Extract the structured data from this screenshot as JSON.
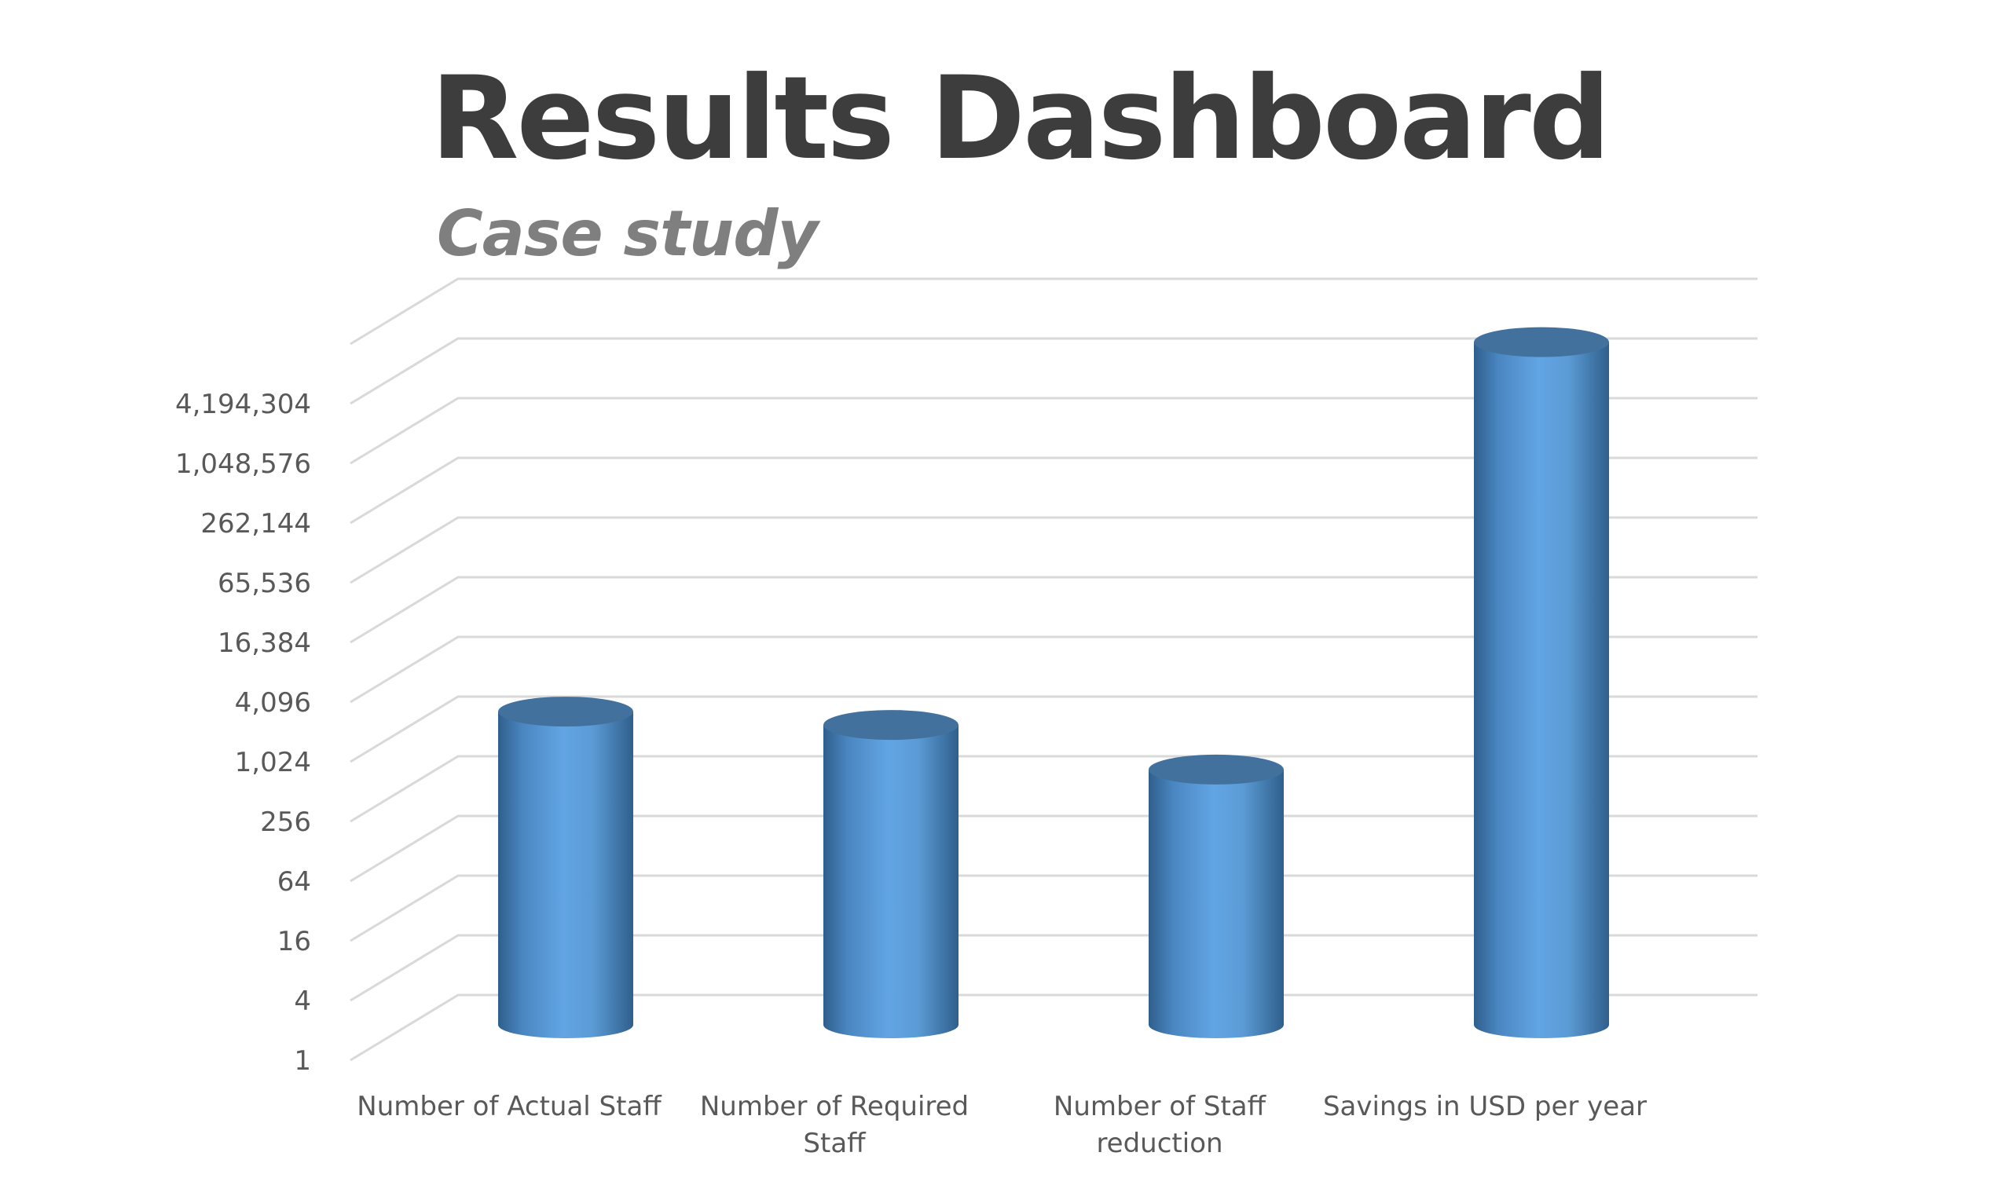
{
  "header": {
    "title": "Results Dashboard",
    "subtitle": "Case study"
  },
  "chart_data": {
    "type": "bar",
    "variant": "3d-cylinder",
    "scale": "log2",
    "title": "",
    "xlabel": "",
    "ylabel": "",
    "ylim": [
      1,
      16777216
    ],
    "y_tick_labels": [
      "1",
      "4",
      "16",
      "64",
      "256",
      "1,024",
      "4,096",
      "16,384",
      "65,536",
      "262,144",
      "1,048,576",
      "4,194,304"
    ],
    "categories": [
      [
        "Number of Actual Staff"
      ],
      [
        "Number of Required",
        "Staff"
      ],
      [
        "Number of Staff",
        "reduction"
      ],
      [
        "Savings in USD per year"
      ]
    ],
    "values": [
      1500,
      1100,
      390,
      8000000
    ],
    "bar_color": "#5b9bd5",
    "bar_top_color": "#41719c",
    "grid": true,
    "legend": "none"
  }
}
